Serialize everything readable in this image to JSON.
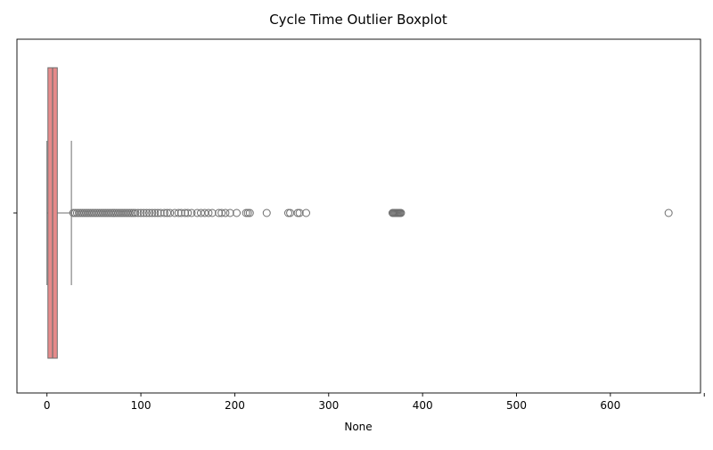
{
  "chart_data": {
    "type": "boxplot",
    "title": "Cycle Time Outlier Boxplot",
    "xlabel": "None",
    "ylabel": "",
    "orientation": "horizontal",
    "xlim": [
      -32,
      696
    ],
    "x_ticks": [
      0,
      100,
      200,
      300,
      400,
      500,
      600,
      700
    ],
    "x_tick_labels": [
      "0",
      "100",
      "200",
      "300",
      "400",
      "500",
      "600",
      ""
    ],
    "grid": false,
    "box": {
      "whisker_low": 0,
      "q1": 1,
      "median": 6,
      "q3": 11,
      "whisker_high": 26,
      "fill_color": "#e68a8a",
      "edge_color": "#6e6e6e"
    },
    "outliers": [
      28,
      30,
      32,
      34,
      36,
      38,
      40,
      42,
      44,
      46,
      48,
      50,
      52,
      54,
      56,
      58,
      60,
      62,
      64,
      66,
      68,
      70,
      72,
      74,
      76,
      78,
      80,
      82,
      84,
      86,
      88,
      90,
      92,
      94,
      97,
      100,
      103,
      106,
      109,
      112,
      115,
      118,
      121,
      125,
      128,
      131,
      136,
      140,
      143,
      147,
      150,
      154,
      160,
      164,
      168,
      172,
      176,
      183,
      186,
      190,
      195,
      202,
      212,
      214,
      216,
      234,
      257,
      259,
      267,
      269,
      276,
      368,
      369,
      370,
      371,
      372,
      373,
      374,
      375,
      376,
      377,
      662
    ],
    "outlier_color": "#6e6e6e"
  }
}
